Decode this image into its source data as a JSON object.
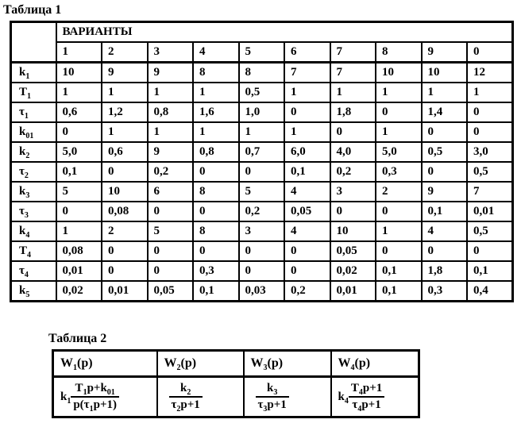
{
  "colors": {
    "text": "#000000",
    "border": "#000000",
    "background": "#ffffff"
  },
  "table1": {
    "title": "Таблица 1",
    "header_group": "ВАРИАНТЫ",
    "variants": [
      "1",
      "2",
      "3",
      "4",
      "5",
      "6",
      "7",
      "8",
      "9",
      "0"
    ],
    "rows": [
      {
        "label": {
          "base": "k",
          "sub": "1"
        },
        "values": [
          "10",
          "9",
          "9",
          "8",
          "8",
          "7",
          "7",
          "10",
          "10",
          "12"
        ]
      },
      {
        "label": {
          "base": "T",
          "sub": "1"
        },
        "values": [
          "1",
          "1",
          "1",
          "1",
          "0,5",
          "1",
          "1",
          "1",
          "1",
          "1"
        ]
      },
      {
        "label": {
          "base": "τ",
          "sub": "1"
        },
        "values": [
          "0,6",
          "1,2",
          "0,8",
          "1,6",
          "1,0",
          "0",
          "1,8",
          "0",
          "1,4",
          "0"
        ]
      },
      {
        "label": {
          "base": "k",
          "sub": "01"
        },
        "values": [
          "0",
          "1",
          "1",
          "1",
          "1",
          "1",
          "0",
          "1",
          "0",
          "0"
        ]
      },
      {
        "label": {
          "base": "k",
          "sub": "2"
        },
        "values": [
          "5,0",
          "0,6",
          "9",
          "0,8",
          "0,7",
          "6,0",
          "4,0",
          "5,0",
          "0,5",
          "3,0"
        ]
      },
      {
        "label": {
          "base": "τ",
          "sub": "2"
        },
        "values": [
          "0,1",
          "0",
          "0,2",
          "0",
          "0",
          "0,1",
          "0,2",
          "0,3",
          "0",
          "0,5"
        ]
      },
      {
        "label": {
          "base": "k",
          "sub": "3"
        },
        "values": [
          "5",
          "10",
          "6",
          "8",
          "5",
          "4",
          "3",
          "2",
          "9",
          "7"
        ]
      },
      {
        "label": {
          "base": "τ",
          "sub": "3"
        },
        "values": [
          "0",
          "0,08",
          "0",
          "0",
          "0,2",
          "0,05",
          "0",
          "0",
          "0,1",
          "0,01"
        ]
      },
      {
        "label": {
          "base": "k",
          "sub": "4"
        },
        "values": [
          "1",
          "2",
          "5",
          "8",
          "3",
          "4",
          "10",
          "1",
          "4",
          "0,5"
        ]
      },
      {
        "label": {
          "base": "T",
          "sub": "4"
        },
        "values": [
          "0,08",
          "0",
          "0",
          "0",
          "0",
          "0",
          "0,05",
          "0",
          "0",
          "0"
        ]
      },
      {
        "label": {
          "base": "τ",
          "sub": "4"
        },
        "values": [
          "0,01",
          "0",
          "0",
          "0,3",
          "0",
          "0",
          "0,02",
          "0,1",
          "1,8",
          "0,1"
        ]
      },
      {
        "label": {
          "base": "k",
          "sub": "5"
        },
        "values": [
          "0,02",
          "0,01",
          "0,05",
          "0,1",
          "0,03",
          "0,2",
          "0,01",
          "0,1",
          "0,3",
          "0,4"
        ]
      }
    ]
  },
  "table2": {
    "title": "Таблица 2",
    "headers": [
      {
        "base": "W",
        "sub": "1",
        "rest": "(p)"
      },
      {
        "base": "W",
        "sub": "2",
        "rest": "(p)"
      },
      {
        "base": "W",
        "sub": "3",
        "rest": "(p)"
      },
      {
        "base": "W",
        "sub": "4",
        "rest": "(p)"
      }
    ],
    "formulas": [
      {
        "prefix": {
          "base": "k",
          "sub": "1"
        },
        "num": [
          {
            "t": "T"
          },
          {
            "s": "1"
          },
          {
            "t": "p+k"
          },
          {
            "s": "01"
          }
        ],
        "den": [
          {
            "t": "p(τ"
          },
          {
            "s": "1"
          },
          {
            "t": "p+1)"
          }
        ]
      },
      {
        "num": [
          {
            "t": "k"
          },
          {
            "s": "2"
          }
        ],
        "den": [
          {
            "t": "τ"
          },
          {
            "s": "2"
          },
          {
            "t": "p+1"
          }
        ]
      },
      {
        "num": [
          {
            "t": "k"
          },
          {
            "s": "3"
          }
        ],
        "den": [
          {
            "t": "τ"
          },
          {
            "s": "3"
          },
          {
            "t": "p+1"
          }
        ]
      },
      {
        "prefix": {
          "base": "k",
          "sub": "4"
        },
        "num": [
          {
            "t": "T"
          },
          {
            "s": "4"
          },
          {
            "t": "p+1"
          }
        ],
        "den": [
          {
            "t": "τ"
          },
          {
            "s": "4"
          },
          {
            "t": "p+1"
          }
        ]
      }
    ]
  }
}
